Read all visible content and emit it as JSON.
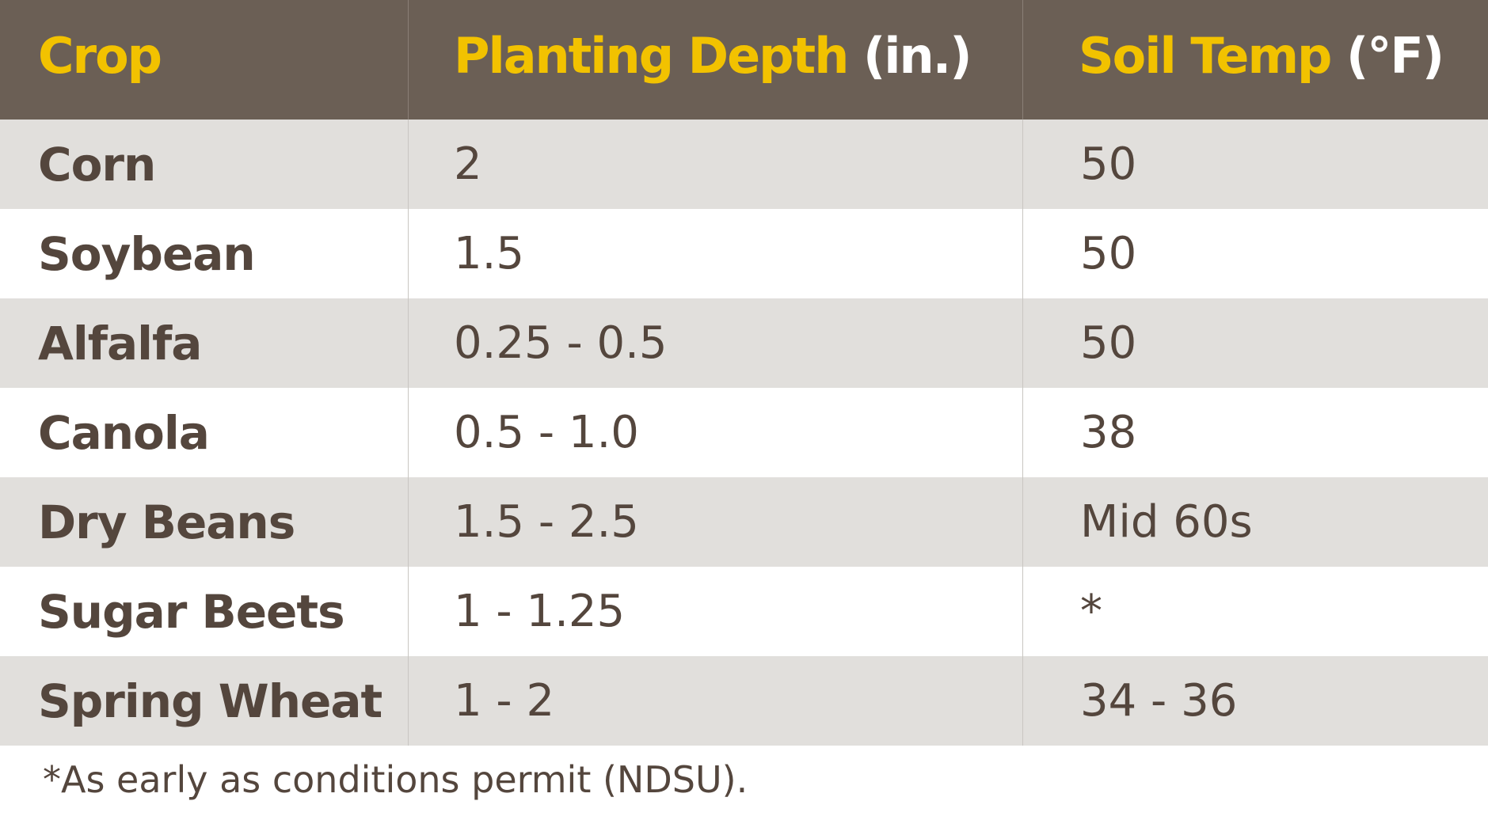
{
  "headers": {
    "crop": "Crop",
    "depth_main": "Planting Depth",
    "depth_unit": "(in.)",
    "temp_main": "Soil Temp",
    "temp_unit": "(°F)"
  },
  "rows": [
    {
      "crop": "Corn",
      "depth": "2",
      "temp": "50"
    },
    {
      "crop": "Soybean",
      "depth": "1.5",
      "temp": "50"
    },
    {
      "crop": "Alfalfa",
      "depth": "0.25 - 0.5",
      "temp": "50"
    },
    {
      "crop": "Canola",
      "depth": "0.5 - 1.0",
      "temp": "38"
    },
    {
      "crop": "Dry Beans",
      "depth": "1.5 - 2.5",
      "temp": "Mid 60s"
    },
    {
      "crop": "Sugar Beets",
      "depth": "1 - 1.25",
      "temp": "*"
    },
    {
      "crop": "Spring Wheat",
      "depth": "1 - 2",
      "temp": "34 - 36"
    }
  ],
  "footnote": "*As early as conditions permit (NDSU).",
  "colors": {
    "header_bg": "#6b5f55",
    "header_accent": "#f2c200",
    "header_unit": "#ffffff",
    "row_shaded": "#e1dfdc",
    "row_plain": "#ffffff",
    "text": "#54463d"
  }
}
